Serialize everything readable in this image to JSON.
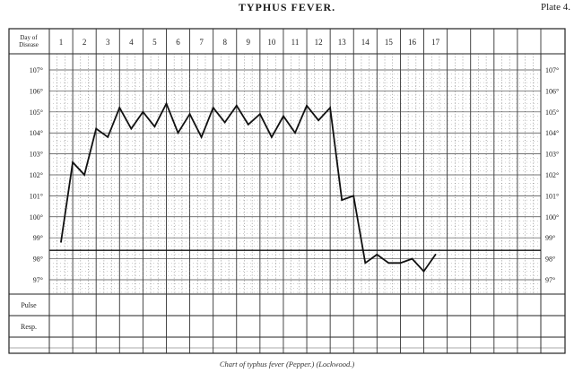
{
  "header": {
    "title": "TYPHUS FEVER.",
    "plate": "Plate 4."
  },
  "caption": "Chart of typhus fever (Pepper.) (Lockwood.)",
  "chart_data": {
    "type": "line",
    "title": "TYPHUS FEVER.",
    "row_header_lines": [
      "Day of",
      "Disease"
    ],
    "days": [
      "1",
      "2",
      "3",
      "4",
      "5",
      "6",
      "7",
      "8",
      "9",
      "10",
      "11",
      "12",
      "13",
      "14",
      "15",
      "16",
      "17"
    ],
    "y_ticks": [
      "107°",
      "106°",
      "105°",
      "104°",
      "103°",
      "102°",
      "101°",
      "100°",
      "99°",
      "98°",
      "97°"
    ],
    "y_tick_values": [
      107,
      106,
      105,
      104,
      103,
      102,
      101,
      100,
      99,
      98,
      97
    ],
    "ylim": [
      96.4,
      107.6
    ],
    "normal_temp": 98.4,
    "bottom_rows": [
      "Pulse",
      "Resp."
    ],
    "series": [
      {
        "x": [
          1.0,
          1.5,
          2.0,
          2.5,
          3.0,
          3.5,
          4.0,
          4.5,
          5.0,
          5.5,
          6.0,
          6.5,
          7.0,
          7.5,
          8.0,
          8.5,
          9.0,
          9.5,
          10.0,
          10.5,
          11.0,
          11.5,
          12.0,
          12.5,
          13.0,
          13.5,
          14.0,
          14.5,
          15.0,
          15.5,
          16.0,
          16.5,
          17.0
        ],
        "values": [
          98.8,
          102.6,
          102.0,
          104.2,
          103.8,
          105.2,
          104.2,
          105.0,
          104.3,
          105.4,
          104.0,
          104.9,
          103.8,
          105.2,
          104.5,
          105.3,
          104.4,
          104.9,
          103.8,
          104.8,
          104.0,
          105.3,
          104.6,
          105.2,
          100.8,
          101.0,
          97.8,
          98.2,
          97.8,
          97.8,
          98.0,
          97.4,
          98.2
        ]
      }
    ]
  }
}
